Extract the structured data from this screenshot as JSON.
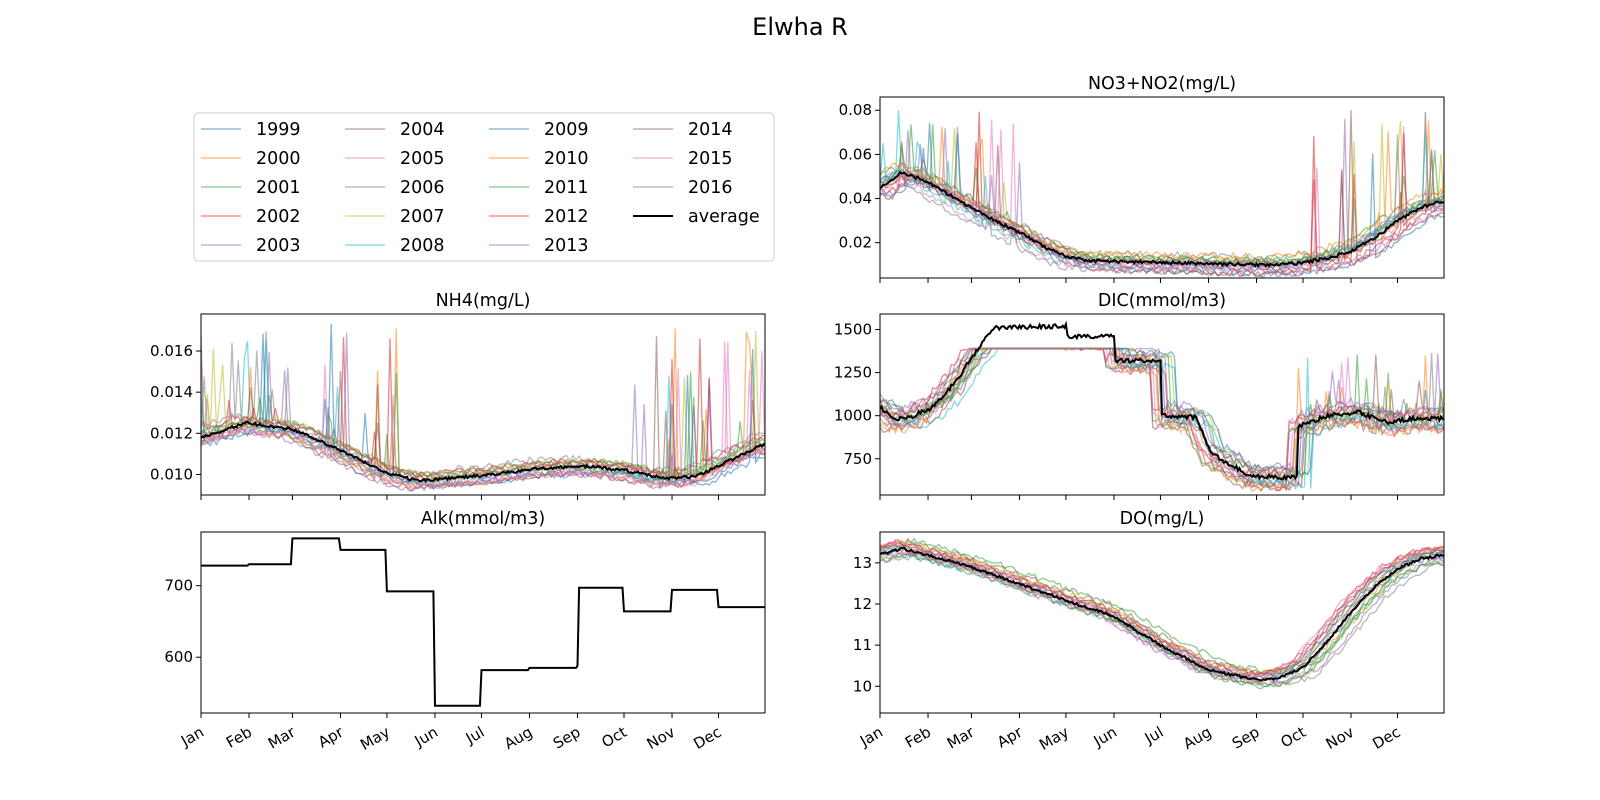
{
  "figure_title": "Elwha R",
  "legend": {
    "location": "upper-left panel area",
    "entries": [
      "1999",
      "2000",
      "2001",
      "2002",
      "2003",
      "2004",
      "2005",
      "2006",
      "2007",
      "2008",
      "2009",
      "2010",
      "2011",
      "2012",
      "2013",
      "2014",
      "2015",
      "2016",
      "average"
    ]
  },
  "colors": {
    "years": [
      "#1f77b4",
      "#ff7f0e",
      "#2ca02c",
      "#d62728",
      "#9467bd",
      "#8c564b",
      "#e377c2",
      "#7f7f7f",
      "#bcbd22",
      "#17becf",
      "#1f77b4",
      "#ff7f0e",
      "#2ca02c",
      "#d62728",
      "#9467bd",
      "#8c564b",
      "#e377c2",
      "#7f7f7f"
    ],
    "average": "#000000"
  },
  "month_labels": [
    "Jan",
    "Feb",
    "Mar",
    "Apr",
    "May",
    "Jun",
    "Jul",
    "Aug",
    "Sep",
    "Oct",
    "Nov",
    "Dec"
  ],
  "chart_data": [
    {
      "type": "line",
      "title": "NO3+NO2(mg/L)",
      "panel": "top-right",
      "xlabel": "",
      "ylabel": "",
      "x_unit": "day of year (months Jan–Dec)",
      "ylim": [
        0.004,
        0.086
      ],
      "yticks": [
        "0.02",
        "0.04",
        "0.06",
        "0.08"
      ],
      "ytick_values": [
        0.02,
        0.04,
        0.06,
        0.08
      ],
      "show_xticklabels": false,
      "average_keypoints": [
        [
          1,
          0.045
        ],
        [
          15,
          0.052
        ],
        [
          30,
          0.048
        ],
        [
          45,
          0.042
        ],
        [
          60,
          0.036
        ],
        [
          75,
          0.03
        ],
        [
          90,
          0.025
        ],
        [
          105,
          0.019
        ],
        [
          120,
          0.014
        ],
        [
          135,
          0.012
        ],
        [
          152,
          0.0115
        ],
        [
          182,
          0.011
        ],
        [
          213,
          0.0105
        ],
        [
          244,
          0.01
        ],
        [
          260,
          0.01
        ],
        [
          274,
          0.011
        ],
        [
          290,
          0.013
        ],
        [
          305,
          0.016
        ],
        [
          320,
          0.022
        ],
        [
          335,
          0.03
        ],
        [
          350,
          0.036
        ],
        [
          365,
          0.039
        ]
      ],
      "year_spread": 0.004,
      "spikes": {
        "upper_cap": 0.082,
        "periods": [
          [
            1,
            100
          ],
          [
            280,
            365
          ]
        ]
      }
    },
    {
      "type": "line",
      "title": "NH4(mg/L)",
      "panel": "middle-left",
      "xlabel": "",
      "ylabel": "",
      "ylim": [
        0.009,
        0.0178
      ],
      "yticks": [
        "0.010",
        "0.012",
        "0.014",
        "0.016"
      ],
      "ytick_values": [
        0.01,
        0.012,
        0.014,
        0.016
      ],
      "show_xticklabels": false,
      "average_keypoints": [
        [
          1,
          0.0118
        ],
        [
          30,
          0.0125
        ],
        [
          60,
          0.0122
        ],
        [
          90,
          0.0112
        ],
        [
          120,
          0.0101
        ],
        [
          140,
          0.0097
        ],
        [
          160,
          0.0098
        ],
        [
          190,
          0.01
        ],
        [
          220,
          0.0103
        ],
        [
          250,
          0.0104
        ],
        [
          275,
          0.0102
        ],
        [
          300,
          0.0098
        ],
        [
          320,
          0.0099
        ],
        [
          340,
          0.0106
        ],
        [
          365,
          0.0115
        ]
      ],
      "year_spread": 0.0004,
      "spikes": {
        "upper_cap": 0.0174,
        "periods": [
          [
            1,
            130
          ],
          [
            280,
            365
          ]
        ]
      }
    },
    {
      "type": "line",
      "title": "DIC(mmol/m3)",
      "panel": "middle-right",
      "xlabel": "",
      "ylabel": "",
      "ylim": [
        540,
        1590
      ],
      "yticks": [
        "750",
        "1000",
        "1250",
        "1500"
      ],
      "ytick_values": [
        750,
        1000,
        1250,
        1500
      ],
      "show_xticklabels": false,
      "average_keypoints": [
        [
          1,
          1050
        ],
        [
          10,
          980
        ],
        [
          20,
          990
        ],
        [
          35,
          1050
        ],
        [
          50,
          1200
        ],
        [
          65,
          1400
        ],
        [
          75,
          1510
        ],
        [
          121,
          1520
        ],
        [
          122,
          1460
        ],
        [
          152,
          1460
        ],
        [
          153,
          1320
        ],
        [
          182,
          1320
        ],
        [
          183,
          1000
        ],
        [
          205,
          990
        ],
        [
          215,
          780
        ],
        [
          240,
          650
        ],
        [
          270,
          640
        ],
        [
          271,
          940
        ],
        [
          290,
          1000
        ],
        [
          310,
          1020
        ],
        [
          330,
          960
        ],
        [
          350,
          990
        ],
        [
          365,
          980
        ]
      ],
      "year_spread": 70,
      "spikes": {
        "upper_cap": 1390,
        "periods": [
          [
            270,
            365
          ]
        ]
      }
    },
    {
      "type": "line",
      "title": "Alk(mmol/m3)",
      "panel": "bottom-left",
      "xlabel": "",
      "ylabel": "",
      "ylim": [
        522,
        775
      ],
      "yticks": [
        "600",
        "700"
      ],
      "ytick_values": [
        600,
        700
      ],
      "show_xticklabels": true,
      "average_steps": [
        [
          1,
          728
        ],
        [
          32,
          730
        ],
        [
          60,
          766
        ],
        [
          91,
          750
        ],
        [
          121,
          692
        ],
        [
          152,
          532
        ],
        [
          182,
          582
        ],
        [
          213,
          585
        ],
        [
          244,
          588
        ],
        [
          245,
          697
        ],
        [
          274,
          664
        ],
        [
          305,
          694
        ],
        [
          335,
          670
        ],
        [
          365,
          670
        ]
      ]
    },
    {
      "type": "line",
      "title": "DO(mg/L)",
      "panel": "bottom-right",
      "xlabel": "",
      "ylabel": "",
      "ylim": [
        9.35,
        13.75
      ],
      "yticks": [
        "10",
        "11",
        "12",
        "13"
      ],
      "ytick_values": [
        10,
        11,
        12,
        13
      ],
      "show_xticklabels": true,
      "average_keypoints": [
        [
          1,
          13.2
        ],
        [
          15,
          13.35
        ],
        [
          30,
          13.2
        ],
        [
          60,
          12.9
        ],
        [
          90,
          12.5
        ],
        [
          120,
          12.1
        ],
        [
          152,
          11.7
        ],
        [
          182,
          11.0
        ],
        [
          213,
          10.4
        ],
        [
          244,
          10.15
        ],
        [
          258,
          10.2
        ],
        [
          274,
          10.45
        ],
        [
          290,
          11.1
        ],
        [
          305,
          11.8
        ],
        [
          320,
          12.4
        ],
        [
          335,
          12.85
        ],
        [
          350,
          13.1
        ],
        [
          365,
          13.2
        ]
      ],
      "year_spread": 0.18,
      "spikes": {
        "upper_cap": 13.65,
        "periods": []
      }
    }
  ]
}
